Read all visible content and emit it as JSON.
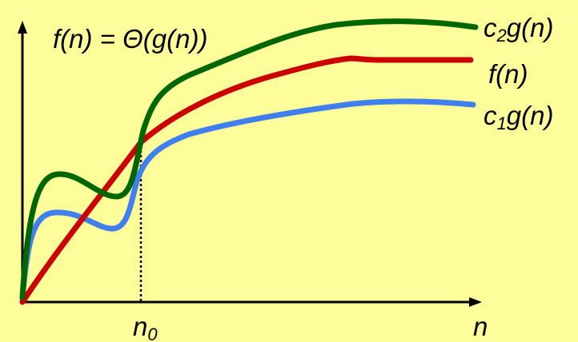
{
  "diagram": {
    "title": {
      "prefix": "f(n) = ",
      "theta": "Θ",
      "suffix": "(g(n))"
    },
    "curves": [
      {
        "id": "c2g",
        "label_pre": "c",
        "label_sub": "2",
        "label_post": "g(n)",
        "color": "#006600"
      },
      {
        "id": "f",
        "label_pre": "f(n)",
        "label_sub": "",
        "label_post": "",
        "color": "#cc0000"
      },
      {
        "id": "c1g",
        "label_pre": "c",
        "label_sub": "1",
        "label_post": "g(n)",
        "color": "#3f7ff0"
      }
    ],
    "x_axis": {
      "label": "n",
      "marker_pre": "n",
      "marker_sub": "0"
    },
    "colors": {
      "background": "#fdfd99",
      "axes": "#000000"
    }
  }
}
